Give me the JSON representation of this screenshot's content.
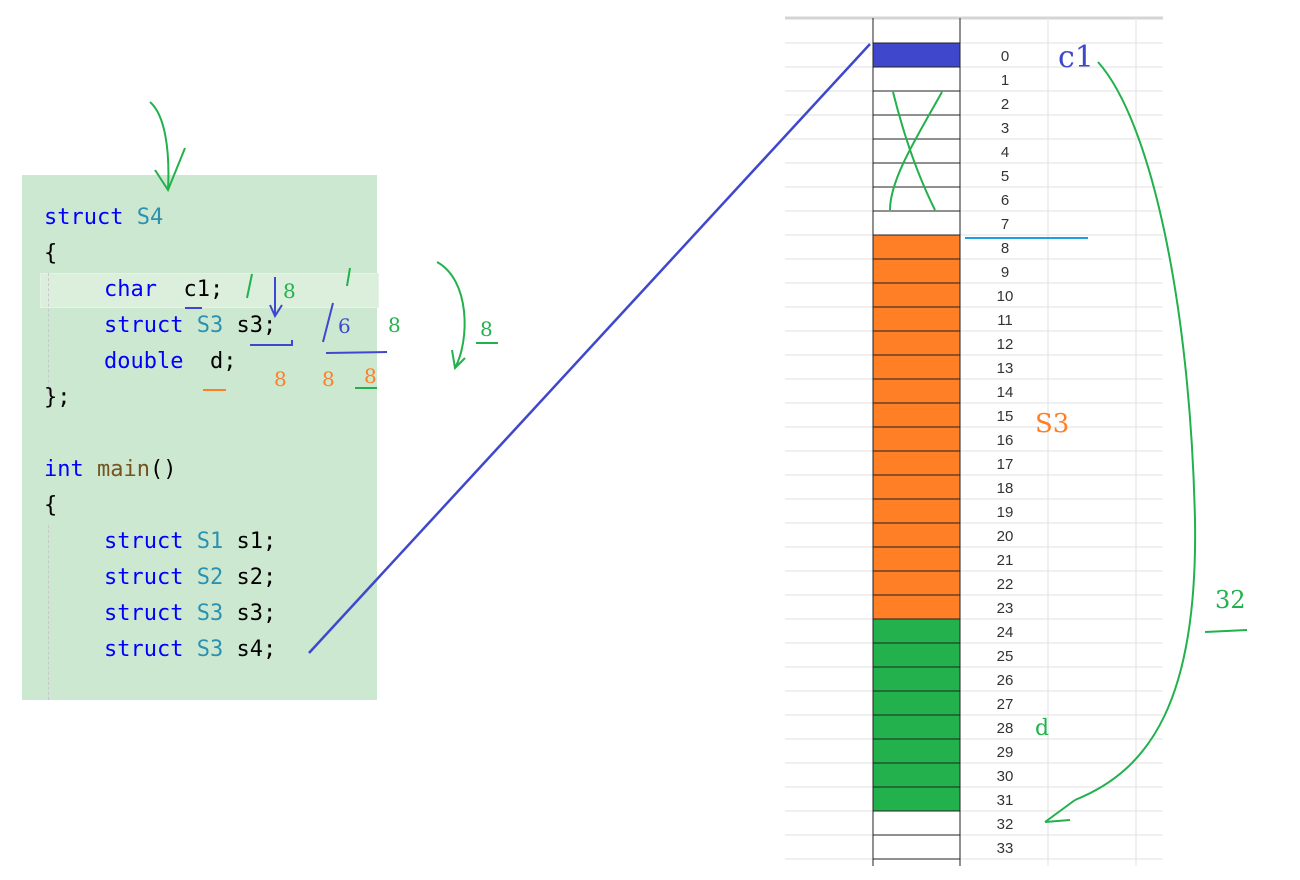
{
  "code": {
    "lines": [
      {
        "kw": "struct",
        "ty": "S4",
        "rest": ""
      },
      {
        "plain": "{"
      },
      {
        "indent": true,
        "kw": "char",
        "rest": " c1;"
      },
      {
        "indent": true,
        "kw": "struct",
        "ty": "S3",
        "rest": " s3;"
      },
      {
        "indent": true,
        "kw": "double",
        "rest": " d;"
      },
      {
        "plain": "};"
      },
      {
        "plain": ""
      },
      {
        "kw": "int",
        "fn": "main",
        "rest": "()"
      },
      {
        "plain": "{"
      },
      {
        "indent": true,
        "kw": "struct",
        "ty": "S1",
        "rest": " s1;"
      },
      {
        "indent": true,
        "kw": "struct",
        "ty": "S2",
        "rest": " s2;"
      },
      {
        "indent": true,
        "kw": "struct",
        "ty": "S3",
        "rest": " s3;"
      },
      {
        "indent": true,
        "kw": "struct",
        "ty": "S3",
        "rest": " s4;"
      }
    ]
  },
  "memory": {
    "offsets": [
      "0",
      "1",
      "2",
      "3",
      "4",
      "5",
      "6",
      "7",
      "8",
      "9",
      "10",
      "11",
      "12",
      "13",
      "14",
      "15",
      "16",
      "17",
      "18",
      "19",
      "20",
      "21",
      "22",
      "23",
      "24",
      "25",
      "26",
      "27",
      "28",
      "29",
      "30",
      "31",
      "32",
      "33"
    ],
    "regions": [
      {
        "member": "c1",
        "from": 0,
        "to": 0,
        "color": "#3f48cc"
      },
      {
        "member": "s3",
        "from": 8,
        "to": 23,
        "color": "#ff7f27"
      },
      {
        "member": "d",
        "from": 24,
        "to": 31,
        "color": "#22b14c"
      }
    ]
  },
  "annotations": {
    "c1_label": "c1",
    "s3_label": "S3",
    "d_label": "d",
    "total_label": "32",
    "code_notes": {
      "c1_size": "1",
      "c1_align": "8",
      "s3_size": "16",
      "s3_align": "8",
      "d_sizes": [
        "8",
        "8",
        "8"
      ],
      "max_align": "8"
    }
  }
}
